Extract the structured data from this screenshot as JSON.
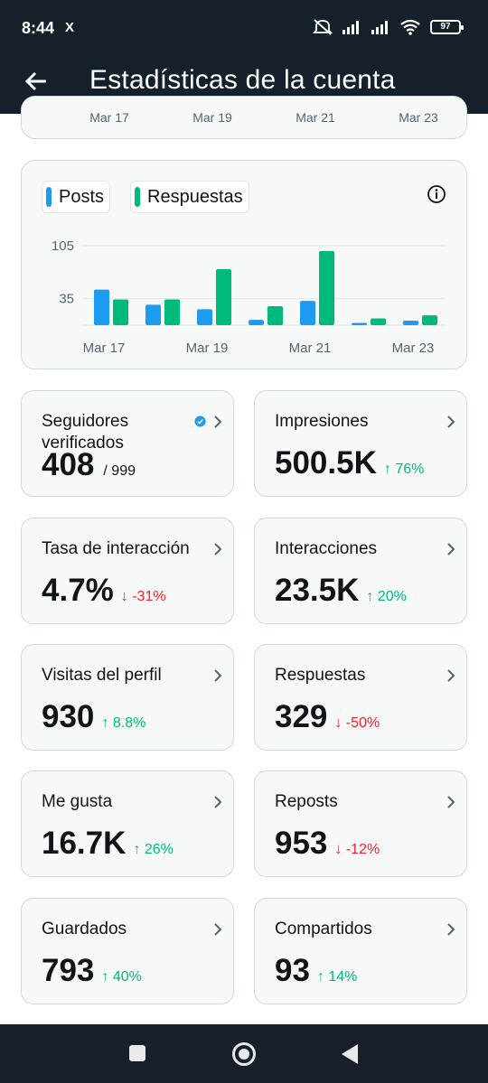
{
  "status_bar": {
    "time": "8:44",
    "app_icon": "X",
    "battery": "97"
  },
  "header": {
    "title": "Estadísticas de la cuenta"
  },
  "partial_chart": {
    "x_labels": [
      "Mar 17",
      "Mar 19",
      "Mar 21",
      "Mar 23"
    ]
  },
  "chart_data": {
    "type": "bar",
    "categories": [
      "Mar 17",
      "Mar 18",
      "Mar 19",
      "Mar 20",
      "Mar 21",
      "Mar 22",
      "Mar 23"
    ],
    "x_tick_labels": [
      "Mar 17",
      "Mar 19",
      "Mar 21",
      "Mar 23"
    ],
    "series": [
      {
        "name": "Posts",
        "color": "#1d9bf0",
        "values": [
          47,
          27,
          21,
          7,
          32,
          3,
          6
        ]
      },
      {
        "name": "Respuestas",
        "color": "#00ba7c",
        "values": [
          34,
          34,
          74,
          25,
          98,
          9,
          13
        ]
      }
    ],
    "y_ticks": [
      35,
      105
    ],
    "ylim": [
      0,
      105
    ],
    "grid": true
  },
  "stats": [
    {
      "label": "Seguidores verificados",
      "value": "408",
      "sub": "/ 999",
      "verified": true
    },
    {
      "label": "Impresiones",
      "value": "500.5K",
      "change": "↑ 76%",
      "direction": "up"
    },
    {
      "label": "Tasa de interacción",
      "value": "4.7%",
      "change": "↓ -31%",
      "direction": "down"
    },
    {
      "label": "Interacciones",
      "value": "23.5K",
      "change": "↑ 20%",
      "direction": "up"
    },
    {
      "label": "Visitas del perfil",
      "value": "930",
      "change": "↑ 8.8%",
      "direction": "up"
    },
    {
      "label": "Respuestas",
      "value": "329",
      "change": "↓ -50%",
      "direction": "down"
    },
    {
      "label": "Me gusta",
      "value": "16.7K",
      "change": "↑ 26%",
      "direction": "up"
    },
    {
      "label": "Reposts",
      "value": "953",
      "change": "↓ -12%",
      "direction": "down"
    },
    {
      "label": "Guardados",
      "value": "793",
      "change": "↑ 40%",
      "direction": "up"
    },
    {
      "label": "Compartidos",
      "value": "93",
      "change": "↑ 14%",
      "direction": "up"
    }
  ]
}
